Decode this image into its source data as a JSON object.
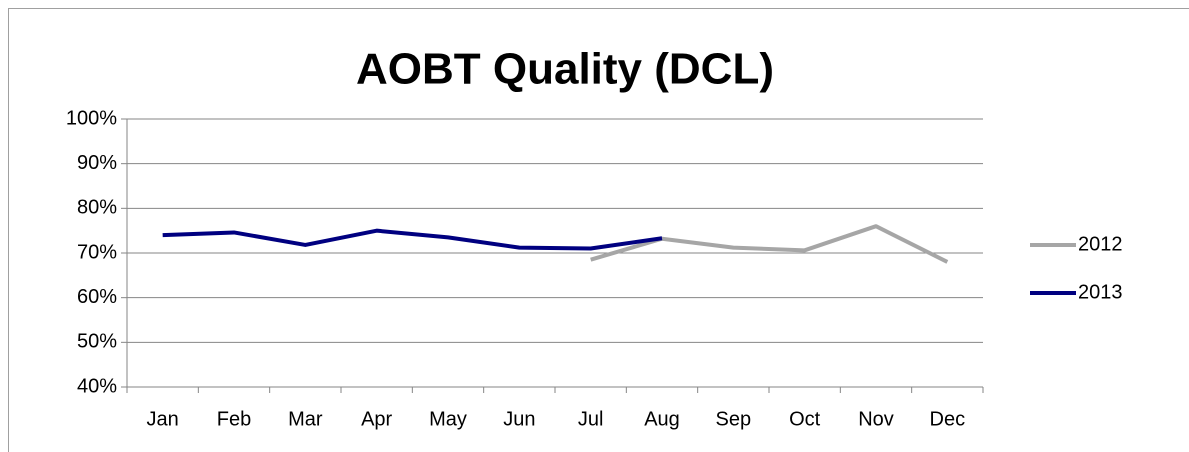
{
  "chart_data": {
    "type": "line",
    "title": "AOBT Quality (DCL)",
    "categories": [
      "Jan",
      "Feb",
      "Mar",
      "Apr",
      "May",
      "Jun",
      "Jul",
      "Aug",
      "Sep",
      "Oct",
      "Nov",
      "Dec"
    ],
    "series": [
      {
        "name": "2012",
        "color": "#a6a6a6",
        "values": [
          null,
          null,
          null,
          null,
          null,
          null,
          68.5,
          73.2,
          71.2,
          70.6,
          76,
          68
        ]
      },
      {
        "name": "2013",
        "color": "#000080",
        "values": [
          74,
          74.6,
          71.8,
          75,
          73.5,
          71.2,
          71,
          73.3,
          null,
          null,
          null,
          null
        ]
      }
    ],
    "ylim": [
      40,
      100
    ],
    "yticks": [
      {
        "value": 40,
        "label": "40%"
      },
      {
        "value": 50,
        "label": "50%"
      },
      {
        "value": 60,
        "label": "60%"
      },
      {
        "value": 70,
        "label": "70%"
      },
      {
        "value": 80,
        "label": "80%"
      },
      {
        "value": 90,
        "label": "90%"
      },
      {
        "value": 100,
        "label": "100%"
      }
    ],
    "grid": true,
    "legend": "right"
  }
}
